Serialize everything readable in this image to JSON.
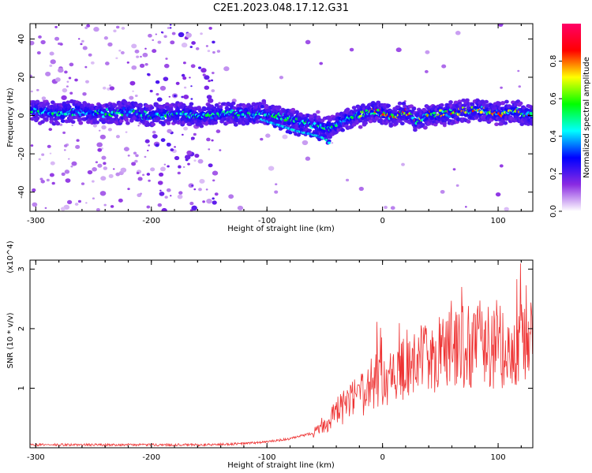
{
  "title": "C2E1.2023.048.17.12.G31",
  "chart_data": [
    {
      "type": "heatmap",
      "xlabel": "Height of straight line (km)",
      "ylabel": "Frequency (Hz)",
      "xlim": [
        -305,
        130
      ],
      "ylim": [
        -50,
        48
      ],
      "xticks": [
        -300,
        -200,
        -100,
        0,
        100
      ],
      "yticks": [
        -40,
        -20,
        0,
        20,
        40
      ],
      "grid": false,
      "colorbar": {
        "label": "Normalized spectral amplitude",
        "range": [
          0,
          1
        ],
        "ticks": [
          0.0,
          0.2,
          0.4,
          0.6,
          0.8
        ],
        "colors": [
          "#ffffff",
          "#8a2be2",
          "#0000ff",
          "#00ffff",
          "#00ff00",
          "#ffff00",
          "#ff0000",
          "#ff0066"
        ]
      },
      "ridge": {
        "x": [
          -300,
          -280,
          -260,
          -240,
          -220,
          -200,
          -180,
          -160,
          -145,
          -130,
          -115,
          -105,
          -90,
          -75,
          -60,
          -50,
          -40,
          -30,
          -20,
          -10,
          0,
          10,
          20,
          30,
          40,
          55,
          70,
          85,
          100,
          115,
          130
        ],
        "y": [
          2,
          1,
          2,
          1,
          2,
          0,
          1,
          0,
          0,
          1,
          0,
          2,
          0,
          -2,
          -5,
          -7,
          -5,
          -2,
          0,
          2,
          2,
          0,
          2,
          -3,
          0,
          1,
          2,
          3,
          1,
          2,
          0
        ]
      },
      "low_branch": {
        "x": [
          -105,
          -90,
          -75,
          -60,
          -50,
          -45
        ],
        "y": [
          -2,
          -5,
          -8,
          -10,
          -12,
          -15
        ]
      }
    },
    {
      "type": "line",
      "xlabel": "Height of straight line (km)",
      "ylabel": "SNR (10 * v/v)",
      "y_multiplier": "(x10^4)",
      "xlim": [
        -305,
        130
      ],
      "ylim": [
        0,
        3.15
      ],
      "xticks": [
        -300,
        -200,
        -100,
        0,
        100
      ],
      "yticks": [
        1,
        2,
        3
      ],
      "grid": false,
      "color": "#ee3333",
      "envelope": {
        "x": [
          -305,
          -150,
          -120,
          -100,
          -80,
          -60,
          -50,
          -40,
          -30,
          -20,
          -10,
          0,
          10,
          20,
          30,
          40,
          60,
          80,
          100,
          115,
          130
        ],
        "y": [
          0.05,
          0.05,
          0.07,
          0.1,
          0.15,
          0.25,
          0.35,
          0.5,
          0.65,
          0.75,
          0.85,
          0.95,
          1.05,
          1.15,
          1.25,
          1.3,
          1.4,
          1.5,
          1.5,
          1.5,
          1.55
        ]
      }
    }
  ]
}
